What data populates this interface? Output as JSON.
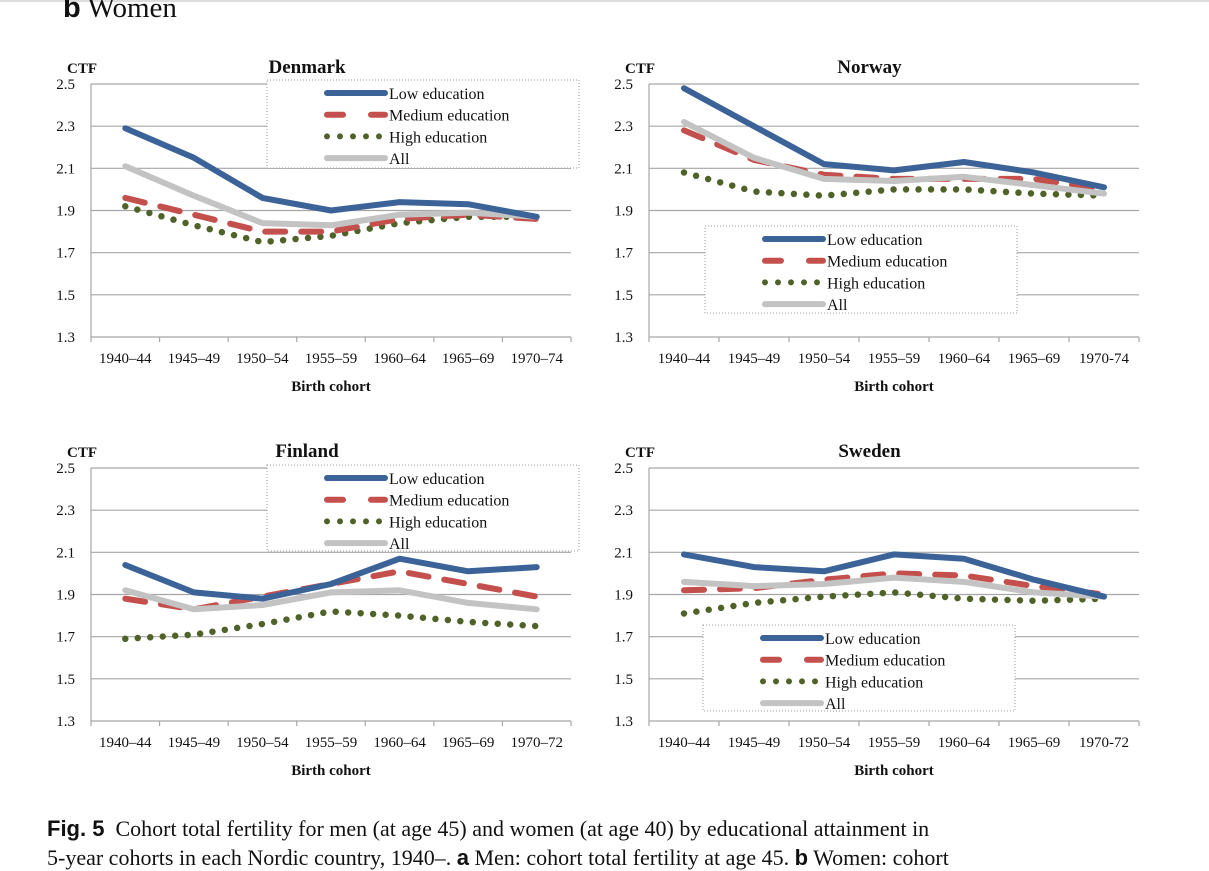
{
  "heading": {
    "letter": "b",
    "text": "Women"
  },
  "colors": {
    "low": "#3b6398",
    "medium": "#c4504e",
    "high": "#4f6228",
    "all": "#c3c3c3",
    "grid": "#a6a6a6"
  },
  "chart_data": [
    {
      "type": "line",
      "title": "Denmark",
      "ylabel": "CTF",
      "xlabel": "Birth cohort",
      "ylim": [
        1.3,
        2.5
      ],
      "yticks": [
        "2.5",
        "2.3",
        "2.1",
        "1.9",
        "1.7",
        "1.5",
        "1.3"
      ],
      "legend": "top-right",
      "categories": [
        "1940–44",
        "1945–49",
        "1950–54",
        "1955–59",
        "1960–64",
        "1965–69",
        "1970–74"
      ],
      "series": [
        {
          "name": "Low education",
          "key": "low",
          "values": [
            2.29,
            2.15,
            1.96,
            1.9,
            1.94,
            1.93,
            1.87
          ]
        },
        {
          "name": "Medium education",
          "key": "medium",
          "values": [
            1.96,
            1.88,
            1.8,
            1.8,
            1.86,
            1.88,
            1.86
          ]
        },
        {
          "name": "High education",
          "key": "high",
          "values": [
            1.92,
            1.83,
            1.75,
            1.78,
            1.84,
            1.87,
            1.87
          ]
        },
        {
          "name": "All",
          "key": "all",
          "values": [
            2.11,
            1.97,
            1.84,
            1.83,
            1.88,
            1.89,
            1.87
          ]
        }
      ]
    },
    {
      "type": "line",
      "title": "Norway",
      "ylabel": "CTF",
      "xlabel": "Birth cohort",
      "ylim": [
        1.3,
        2.5
      ],
      "yticks": [
        "2.5",
        "2.3",
        "2.1",
        "1.9",
        "1.7",
        "1.5",
        "1.3"
      ],
      "legend": "center",
      "categories": [
        "1940–44",
        "1945–49",
        "1950–54",
        "1955–59",
        "1960–64",
        "1965–69",
        "1970-74"
      ],
      "series": [
        {
          "name": "Low education",
          "key": "low",
          "values": [
            2.48,
            2.3,
            2.12,
            2.09,
            2.13,
            2.08,
            2.01
          ]
        },
        {
          "name": "Medium education",
          "key": "medium",
          "values": [
            2.28,
            2.14,
            2.07,
            2.05,
            2.05,
            2.05,
            2.0
          ]
        },
        {
          "name": "High education",
          "key": "high",
          "values": [
            2.08,
            1.99,
            1.97,
            2.0,
            2.0,
            1.98,
            1.97
          ]
        },
        {
          "name": "All",
          "key": "all",
          "values": [
            2.32,
            2.15,
            2.05,
            2.04,
            2.06,
            2.02,
            1.98
          ]
        }
      ]
    },
    {
      "type": "line",
      "title": "Finland",
      "ylabel": "CTF",
      "xlabel": "Birth cohort",
      "ylim": [
        1.3,
        2.5
      ],
      "yticks": [
        "2.5",
        "2.3",
        "2.1",
        "1.9",
        "1.7",
        "1.5",
        "1.3"
      ],
      "legend": "top-right",
      "categories": [
        "1940–44",
        "1945–49",
        "1950–54",
        "1955–59",
        "1960–64",
        "1965–69",
        "1970–72"
      ],
      "series": [
        {
          "name": "Low education",
          "key": "low",
          "values": [
            2.04,
            1.91,
            1.88,
            1.95,
            2.07,
            2.01,
            2.03
          ]
        },
        {
          "name": "Medium education",
          "key": "medium",
          "values": [
            1.88,
            1.83,
            1.89,
            1.95,
            2.01,
            1.95,
            1.89
          ]
        },
        {
          "name": "High education",
          "key": "high",
          "values": [
            1.69,
            1.71,
            1.76,
            1.82,
            1.8,
            1.77,
            1.75
          ]
        },
        {
          "name": "All",
          "key": "all",
          "values": [
            1.92,
            1.83,
            1.85,
            1.91,
            1.92,
            1.86,
            1.83
          ]
        }
      ]
    },
    {
      "type": "line",
      "title": "Sweden",
      "ylabel": "CTF",
      "xlabel": "Birth cohort",
      "ylim": [
        1.3,
        2.5
      ],
      "yticks": [
        "2.5",
        "2.3",
        "2.1",
        "1.9",
        "1.7",
        "1.5",
        "1.3"
      ],
      "legend": "bottom-center",
      "categories": [
        "1940–44",
        "1945–49",
        "1950–54",
        "1955–59",
        "1960–64",
        "1965–69",
        "1970-72"
      ],
      "series": [
        {
          "name": "Low education",
          "key": "low",
          "values": [
            2.09,
            2.03,
            2.01,
            2.09,
            2.07,
            1.97,
            1.89
          ]
        },
        {
          "name": "Medium education",
          "key": "medium",
          "values": [
            1.92,
            1.93,
            1.97,
            2.0,
            1.99,
            1.94,
            1.9
          ]
        },
        {
          "name": "High education",
          "key": "high",
          "values": [
            1.81,
            1.86,
            1.89,
            1.91,
            1.88,
            1.87,
            1.88
          ]
        },
        {
          "name": "All",
          "key": "all",
          "values": [
            1.96,
            1.94,
            1.95,
            1.98,
            1.96,
            1.91,
            1.89
          ]
        }
      ]
    }
  ],
  "caption": {
    "fig_label": "Fig. 5",
    "line1": "Cohort total fertility for men (at age 45) and women (at age 40) by educational attainment in",
    "line2_pre": "5-year cohorts in each Nordic country, 1940–.",
    "a": "a",
    "line2_mid": "Men: cohort total fertility at age 45.",
    "b": "b",
    "line2_post": "Women: cohort"
  }
}
